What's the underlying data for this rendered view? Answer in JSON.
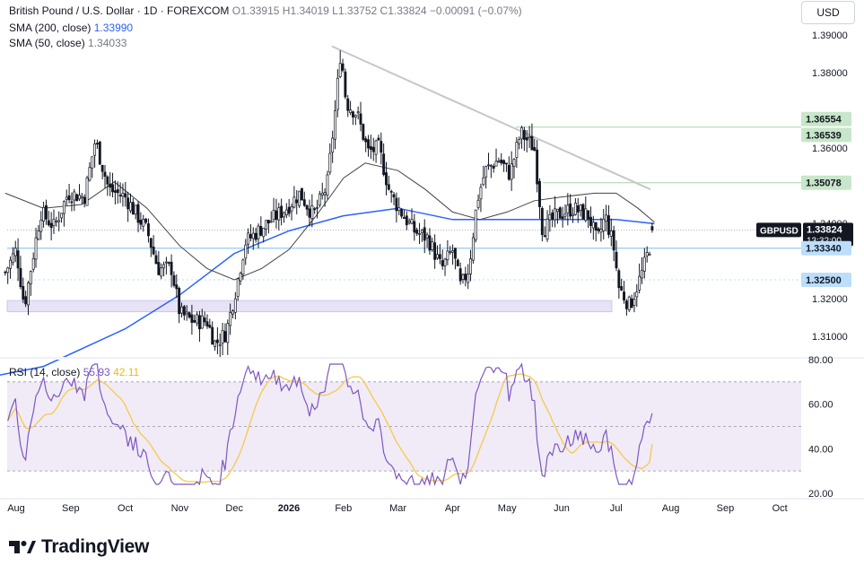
{
  "header": {
    "symbol_title": "British Pound / U.S. Dollar · 1D · FOREXCOM",
    "ohlc": "O1.33915 H1.34019 L1.33752 C1.33824 −0.00091 (−0.07%)",
    "sma200_label": "SMA (200, close)",
    "sma200_value": "1.33990",
    "sma50_label": "SMA (50, close)",
    "sma50_value": "1.34033",
    "rsi_label": "RSI (14, close)",
    "rsi_value": "55.93",
    "rsi_ma_value": "42.11",
    "currency_button": "USD"
  },
  "brand": {
    "name": "TradingView"
  },
  "colors": {
    "up": "#131722",
    "down": "#131722",
    "sma200": "#2962ff",
    "sma50": "#131722",
    "trendline": "#c7c7c7",
    "rsi_line": "#7e57c2",
    "rsi_ma": "#f7c948",
    "rsi_band": "#ede7f6",
    "support_zone": "#e1d9f5",
    "price_tag": "#131722",
    "green_level": "#c8e6c9",
    "blue_level": "#bbdefb"
  },
  "chart_data": [
    {
      "type": "candlestick",
      "title": "British Pound / U.S. Dollar · 1D · FOREXCOM",
      "y_ticks": [
        "1.39000",
        "1.38000",
        "1.36000",
        "1.34000",
        "1.32000",
        "1.31000"
      ],
      "x_ticks": [
        "Aug",
        "Sep",
        "Oct",
        "Nov",
        "Dec",
        "2026",
        "Feb",
        "Mar",
        "Apr",
        "May",
        "Jun",
        "Jul",
        "Aug",
        "Sep",
        "Oct"
      ],
      "ylim": [
        1.3055,
        1.4
      ],
      "grid": false,
      "close_series_monthly_approx": [
        {
          "x": "Aug",
          "y": 1.334
        },
        {
          "x": "Sep",
          "y": 1.349
        },
        {
          "x": "Oct",
          "y": 1.331
        },
        {
          "x": "Nov",
          "y": 1.312
        },
        {
          "x": "Dec",
          "y": 1.336
        },
        {
          "x": "2026",
          "y": 1.345
        },
        {
          "x": "Feb",
          "y": 1.368
        },
        {
          "x": "Mar",
          "y": 1.335
        },
        {
          "x": "Apr",
          "y": 1.34
        },
        {
          "x": "May",
          "y": 1.357
        },
        {
          "x": "Jun",
          "y": 1.342
        },
        {
          "x": "Jul",
          "y": 1.33824
        }
      ],
      "price_labels": [
        {
          "value": "1.36554",
          "kind": "green"
        },
        {
          "value": "1.36539",
          "kind": "green"
        },
        {
          "value": "1.35078",
          "kind": "green"
        },
        {
          "value": "1.33824",
          "kind": "current",
          "symbol": "GBPUSD",
          "countdown": "13:32:00"
        },
        {
          "value": "1.33340",
          "kind": "blue"
        },
        {
          "value": "1.32500",
          "kind": "blue"
        }
      ],
      "annotations": {
        "trendline": {
          "from": {
            "x": "Jan",
            "y": 1.387
          },
          "to": {
            "x": "Jul",
            "y": 1.35
          }
        },
        "support_zone": [
          1.3165,
          1.3195
        ],
        "resistance_lines": [
          1.36554,
          1.35078
        ],
        "support_lines": [
          1.3334,
          1.325
        ]
      }
    },
    {
      "type": "line",
      "title": "RSI (14, close)",
      "y_ticks": [
        "80.00",
        "60.00",
        "40.00",
        "20.00"
      ],
      "ylim": [
        20,
        80
      ],
      "band": [
        30,
        70
      ],
      "series": [
        {
          "name": "RSI (14, close)",
          "last": 55.93
        },
        {
          "name": "RSI-based MA",
          "last": 42.11
        }
      ]
    }
  ]
}
